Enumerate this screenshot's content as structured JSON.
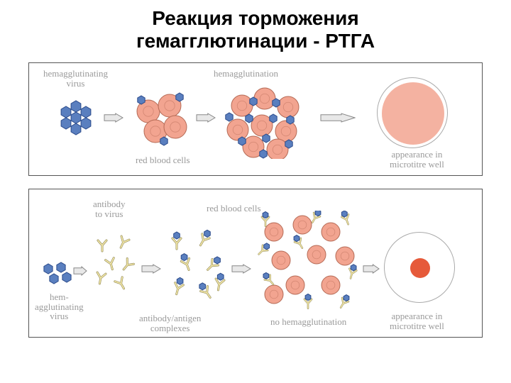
{
  "title_line1": "Реакция торможения",
  "title_line2": "гемагглютинации - РТГА",
  "title_fontsize": 28,
  "colors": {
    "virus_fill": "#5a7fbf",
    "virus_stroke": "#2a4a8a",
    "rbc_fill": "#f2a490",
    "rbc_stroke": "#b56a55",
    "antibody_fill": "#f4e9a8",
    "antibody_stroke": "#999060",
    "arrow_fill": "#e8e8e8",
    "arrow_stroke": "#888",
    "well_border": "#999",
    "well_pos_fill": "#f2a490",
    "well_neg_fill": "#e65a3a",
    "label_color": "#9a9a9a",
    "panel_border": "#555"
  },
  "label_fontsize": 13,
  "panel1": {
    "labels": {
      "virus": "hemagglutinating\nvirus",
      "rbc": "red blood cells",
      "hemagg": "hemagglutination",
      "appearance": "appearance in\nmicrotitre well"
    }
  },
  "panel2": {
    "labels": {
      "antibody": "antibody\nto virus",
      "virus": "hem-\nagglutinating\nvirus",
      "complexes": "antibody/antigen\ncomplexes",
      "rbc": "red blood cells",
      "nohemagg": "no hemagglutination",
      "appearance": "appearance in\nmicrotitre well"
    }
  }
}
